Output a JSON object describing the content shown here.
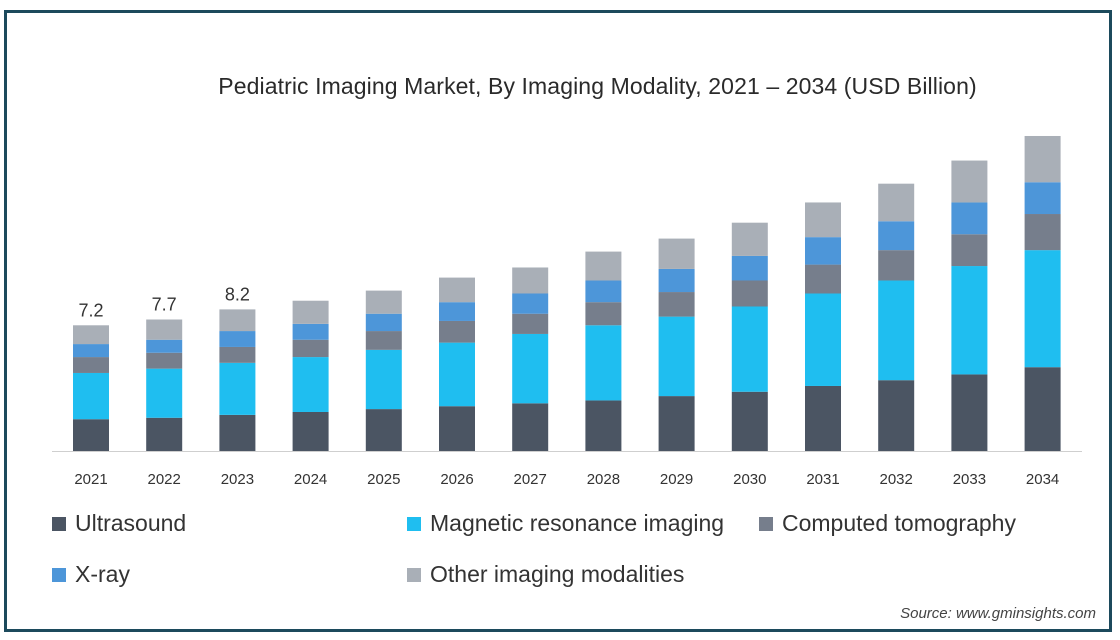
{
  "chart_data": {
    "type": "bar",
    "stacked": true,
    "title": "Pediatric Imaging Market, By Imaging Modality, 2021 – 2034 (USD Billion)",
    "categories": [
      "2021",
      "2022",
      "2023",
      "2024",
      "2025",
      "2026",
      "2027",
      "2028",
      "2029",
      "2030",
      "2031",
      "2032",
      "2033",
      "2034"
    ],
    "series": [
      {
        "name": "Ultrasound",
        "color": "#4b5563",
        "values": [
          2.2,
          2.3,
          2.5,
          2.7,
          2.9,
          3.1,
          3.3,
          3.5,
          3.8,
          4.1,
          4.5,
          4.9,
          5.3,
          5.8
        ]
      },
      {
        "name": "Magnetic resonance imaging",
        "color": "#1fbef0",
        "values": [
          3.2,
          3.4,
          3.6,
          3.8,
          4.1,
          4.4,
          4.8,
          5.2,
          5.5,
          5.9,
          6.4,
          6.9,
          7.5,
          8.1
        ]
      },
      {
        "name": "Computed tomography",
        "color": "#767e8c",
        "values": [
          1.1,
          1.1,
          1.1,
          1.2,
          1.3,
          1.5,
          1.4,
          1.6,
          1.7,
          1.8,
          2.0,
          2.1,
          2.2,
          2.5
        ]
      },
      {
        "name": "X-ray",
        "color": "#4d96d9",
        "values": [
          0.9,
          0.9,
          1.1,
          1.1,
          1.2,
          1.3,
          1.4,
          1.5,
          1.6,
          1.7,
          1.9,
          2.0,
          2.2,
          2.2
        ]
      },
      {
        "name": "Other imaging modalities",
        "color": "#a9afb7",
        "values": [
          1.3,
          1.4,
          1.5,
          1.6,
          1.6,
          1.7,
          1.8,
          2.0,
          2.1,
          2.3,
          2.4,
          2.6,
          2.9,
          3.2
        ]
      }
    ],
    "data_labels": [
      "7.2",
      "7.7",
      "8.2"
    ],
    "ylim": [
      0,
      22
    ],
    "grid": false,
    "legend_position": "bottom"
  },
  "source": "Source: www.gminsights.com"
}
